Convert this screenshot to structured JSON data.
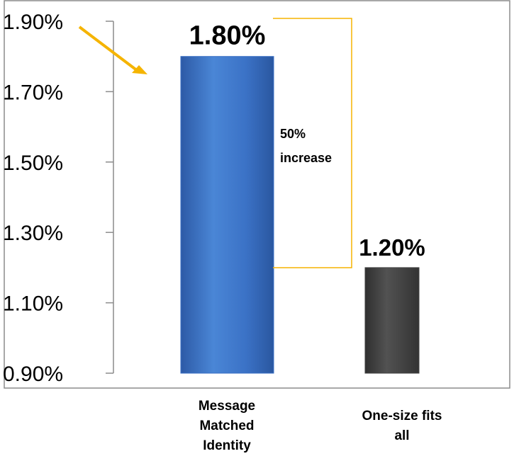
{
  "chart_data": {
    "type": "bar",
    "categories": [
      "Message Matched Identity",
      "One-size fits all"
    ],
    "category_lines": [
      [
        "Message",
        "Matched",
        "Identity"
      ],
      [
        "One-size fits",
        "all"
      ]
    ],
    "values": [
      1.8,
      1.2
    ],
    "data_labels": [
      "1.80%",
      "1.20%"
    ],
    "ylim": [
      0.9,
      1.9
    ],
    "yticks": [
      0.9,
      1.1,
      1.3,
      1.5,
      1.7,
      1.9
    ],
    "ytick_labels": [
      "0.90%",
      "1.10%",
      "1.30%",
      "1.50%",
      "1.70%",
      "1.90%"
    ],
    "grid": false,
    "bar_colors": [
      "#3a6fc4",
      "#424242"
    ],
    "annotation": {
      "line1": "50%",
      "line2": "increase"
    },
    "annotation_color": "#f5b400"
  }
}
